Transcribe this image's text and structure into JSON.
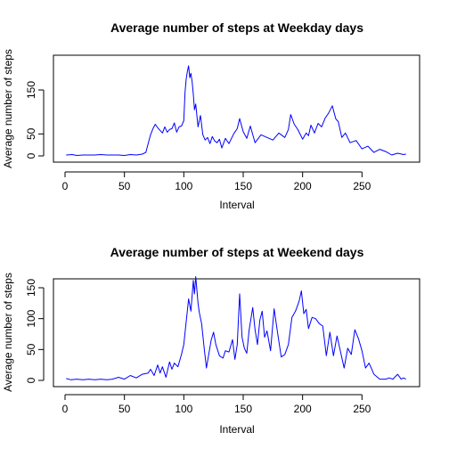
{
  "chart_data": [
    {
      "type": "line",
      "title": "Average number of steps at Weekday days",
      "xlabel": "Interval",
      "ylabel": "Average number of steps",
      "xlim": [
        0,
        288
      ],
      "ylim": [
        0,
        230
      ],
      "xticks": [
        0,
        50,
        100,
        150,
        200,
        250
      ],
      "yticks": [
        0,
        50,
        150
      ],
      "color": "#0000ff",
      "series": [
        {
          "x": [
            1,
            6,
            10,
            15,
            20,
            25,
            30,
            35,
            40,
            45,
            50,
            55,
            60,
            65,
            68,
            70,
            72,
            74,
            76,
            78,
            80,
            82,
            84,
            86,
            88,
            90,
            92,
            94,
            96,
            98,
            100,
            101,
            102,
            103,
            104,
            105,
            106,
            107,
            108,
            109,
            110,
            112,
            114,
            116,
            118,
            120,
            122,
            124,
            126,
            128,
            130,
            132,
            135,
            138,
            142,
            145,
            147,
            150,
            153,
            156,
            160,
            165,
            170,
            175,
            180,
            185,
            188,
            190,
            193,
            196,
            200,
            203,
            205,
            207,
            210,
            213,
            216,
            219,
            222,
            225,
            228,
            230,
            233,
            236,
            240,
            245,
            250,
            255,
            260,
            265,
            270,
            275,
            280,
            285,
            287
          ],
          "y": [
            2,
            3,
            1,
            2,
            2,
            2,
            3,
            2,
            2,
            2,
            1,
            3,
            2,
            4,
            8,
            28,
            48,
            62,
            72,
            64,
            58,
            52,
            66,
            54,
            60,
            62,
            75,
            54,
            66,
            68,
            80,
            145,
            175,
            192,
            205,
            178,
            188,
            168,
            140,
            105,
            118,
            66,
            92,
            48,
            36,
            42,
            28,
            44,
            34,
            30,
            38,
            18,
            40,
            28,
            50,
            62,
            85,
            55,
            40,
            68,
            30,
            48,
            42,
            36,
            52,
            42,
            60,
            94,
            72,
            60,
            38,
            52,
            46,
            70,
            52,
            74,
            66,
            86,
            98,
            114,
            84,
            78,
            42,
            52,
            30,
            35,
            16,
            22,
            8,
            15,
            10,
            2,
            6,
            3,
            4
          ]
        }
      ]
    },
    {
      "type": "line",
      "title": "Average number of steps at Weekend days",
      "xlabel": "Interval",
      "ylabel": "Average number of steps",
      "xlim": [
        0,
        288
      ],
      "ylim": [
        0,
        170
      ],
      "xticks": [
        0,
        50,
        100,
        150,
        200,
        250
      ],
      "yticks": [
        0,
        50,
        100,
        150
      ],
      "color": "#0000ff",
      "series": [
        {
          "x": [
            1,
            5,
            10,
            15,
            20,
            25,
            30,
            35,
            40,
            45,
            50,
            55,
            60,
            65,
            70,
            72,
            75,
            78,
            80,
            82,
            85,
            88,
            90,
            92,
            95,
            98,
            100,
            102,
            104,
            106,
            108,
            109,
            110,
            112,
            113,
            115,
            117,
            119,
            121,
            123,
            125,
            127,
            130,
            133,
            135,
            138,
            141,
            143,
            145,
            147,
            149,
            151,
            153,
            155,
            158,
            160,
            162,
            164,
            166,
            168,
            170,
            173,
            176,
            179,
            182,
            185,
            188,
            191,
            194,
            197,
            199,
            201,
            203,
            205,
            208,
            211,
            214,
            217,
            220,
            223,
            226,
            229,
            232,
            235,
            238,
            241,
            244,
            247,
            250,
            253,
            256,
            260,
            265,
            270,
            273,
            276,
            280,
            283,
            285,
            287
          ],
          "y": [
            3,
            1,
            2,
            1,
            2,
            1,
            2,
            1,
            2,
            5,
            2,
            8,
            4,
            10,
            12,
            18,
            8,
            25,
            12,
            22,
            5,
            30,
            18,
            28,
            22,
            42,
            58,
            95,
            132,
            112,
            162,
            140,
            168,
            125,
            110,
            92,
            55,
            20,
            42,
            65,
            78,
            58,
            40,
            36,
            48,
            46,
            66,
            34,
            58,
            140,
            70,
            52,
            44,
            82,
            118,
            82,
            58,
            98,
            112,
            70,
            80,
            48,
            116,
            76,
            38,
            42,
            58,
            102,
            112,
            128,
            145,
            108,
            115,
            84,
            102,
            100,
            92,
            88,
            40,
            78,
            40,
            72,
            46,
            20,
            52,
            42,
            82,
            68,
            48,
            20,
            28,
            10,
            2,
            2,
            4,
            2,
            10,
            2,
            4,
            2
          ]
        }
      ]
    }
  ]
}
